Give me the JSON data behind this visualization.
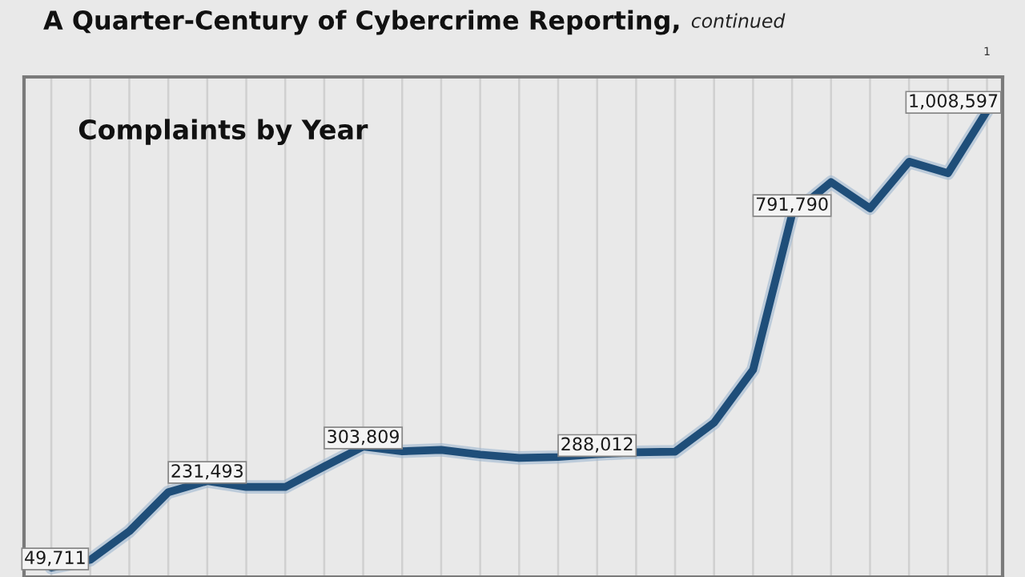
{
  "chart_data": {
    "type": "line",
    "title": "A Quarter-Century of Cybercrime Reporting,",
    "subtitle": "Complaints by Year",
    "annotations": [
      "continued",
      "1"
    ],
    "categories": [
      null,
      null,
      null,
      null,
      null,
      null,
      null,
      null,
      null,
      null,
      null,
      null,
      null,
      null,
      null,
      null,
      null,
      null,
      null,
      null,
      null,
      null,
      null,
      null,
      null
    ],
    "series": [
      {
        "color": "#1f4e79",
        "values": [
          49711,
          66000,
          126000,
          208000,
          231493,
          219000,
          219000,
          262000,
          303809,
          294000,
          297000,
          287000,
          280000,
          282000,
          288012,
          292000,
          293000,
          354000,
          465000,
          791790,
          859000,
          804000,
          902000,
          878000,
          1008597
        ],
        "value_labels": [
          "49,711",
          null,
          null,
          null,
          "231,493",
          null,
          null,
          null,
          "303,809",
          null,
          null,
          null,
          null,
          null,
          "288,012",
          null,
          null,
          null,
          null,
          "791,790",
          null,
          null,
          null,
          null,
          "1,008,597"
        ]
      }
    ],
    "ylim": [
      30000,
      1080000
    ],
    "grid": "x",
    "marker": "none",
    "line_style": "solid",
    "legend": false
  }
}
